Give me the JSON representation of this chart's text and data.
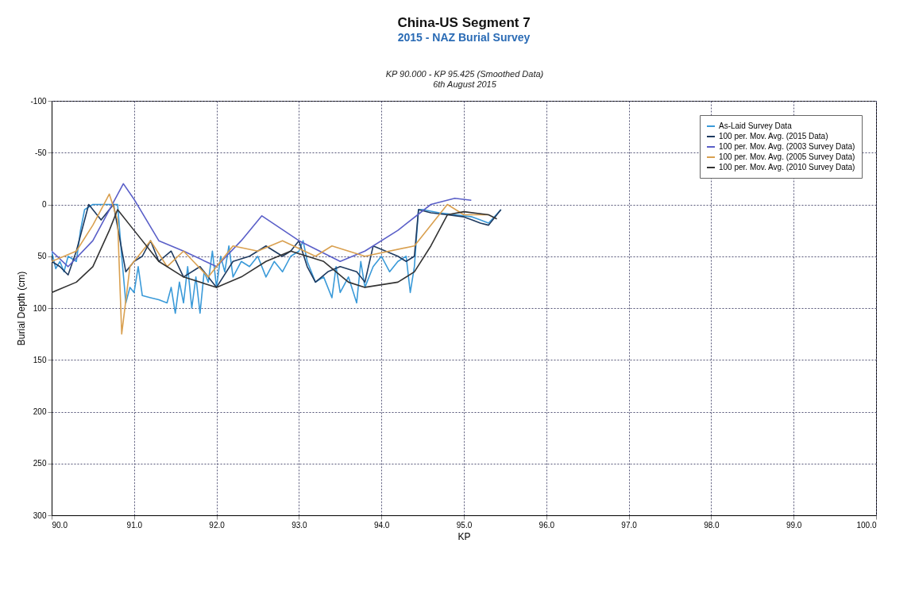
{
  "chart_data": {
    "type": "line",
    "title": "China-US Segment 7",
    "subtitle": "2015 - NAZ Burial Survey",
    "annotations": [
      "KP 90.000 - KP 95.425 (Smoothed Data)",
      "6th August 2015"
    ],
    "xlabel": "KP",
    "ylabel": "Burial Depth (cm)",
    "xlim": [
      90,
      100
    ],
    "xticks": [
      {
        "value": 90,
        "label": "90.0"
      },
      {
        "value": 91,
        "label": "91.0"
      },
      {
        "value": 92,
        "label": "92.0"
      },
      {
        "value": 93,
        "label": "93.0"
      },
      {
        "value": 94,
        "label": "94.0"
      },
      {
        "value": 95,
        "label": "95.0"
      },
      {
        "value": 96,
        "label": "96.0"
      },
      {
        "value": 97,
        "label": "97.0"
      },
      {
        "value": 98,
        "label": "98.0"
      },
      {
        "value": 99,
        "label": "99.0"
      },
      {
        "value": 100,
        "label": "100.0"
      }
    ],
    "ylim": [
      300,
      -100
    ],
    "yticks": [
      -100,
      -50,
      0,
      50,
      100,
      150,
      200,
      250,
      300
    ],
    "grid": true,
    "legend": "top right",
    "series": [
      {
        "name": "As-Laid Survey Data",
        "color": "#3a9ad9",
        "x": [
          90.0,
          90.05,
          90.1,
          90.15,
          90.2,
          90.3,
          90.35,
          90.4,
          90.5,
          90.6,
          90.7,
          90.8,
          90.85,
          90.9,
          90.95,
          91.0,
          91.05,
          91.1,
          91.2,
          91.3,
          91.4,
          91.45,
          91.5,
          91.55,
          91.6,
          91.65,
          91.7,
          91.75,
          91.8,
          91.85,
          91.9,
          91.95,
          92.0,
          92.05,
          92.1,
          92.15,
          92.2,
          92.3,
          92.4,
          92.5,
          92.6,
          92.7,
          92.8,
          92.9,
          93.0,
          93.05,
          93.1,
          93.2,
          93.3,
          93.4,
          93.45,
          93.5,
          93.6,
          93.7,
          93.75,
          93.8,
          93.9,
          94.0,
          94.1,
          94.2,
          94.3,
          94.35,
          94.4,
          94.45,
          94.5,
          94.7,
          94.9,
          95.1,
          95.2,
          95.3,
          95.45
        ],
        "values": [
          45,
          62,
          55,
          65,
          50,
          55,
          25,
          5,
          0,
          0,
          0,
          0,
          50,
          95,
          80,
          85,
          60,
          88,
          90,
          92,
          95,
          80,
          105,
          75,
          95,
          60,
          100,
          70,
          105,
          65,
          75,
          45,
          80,
          50,
          65,
          40,
          70,
          55,
          60,
          50,
          70,
          55,
          65,
          50,
          45,
          35,
          55,
          75,
          70,
          90,
          60,
          85,
          70,
          95,
          55,
          80,
          60,
          50,
          65,
          55,
          50,
          85,
          60,
          5,
          5,
          8,
          10,
          12,
          15,
          18,
          5
        ]
      },
      {
        "name": "100 per. Mov. Avg. (2015 Data)",
        "color": "#1f3a5f",
        "x": [
          90.0,
          90.1,
          90.2,
          90.3,
          90.45,
          90.6,
          90.75,
          90.9,
          91.0,
          91.1,
          91.2,
          91.3,
          91.45,
          91.6,
          91.8,
          92.0,
          92.2,
          92.4,
          92.6,
          92.8,
          92.9,
          93.0,
          93.1,
          93.2,
          93.35,
          93.5,
          93.7,
          93.8,
          93.9,
          94.05,
          94.2,
          94.3,
          94.4,
          94.45,
          94.6,
          94.8,
          95.0,
          95.1,
          95.2,
          95.3,
          95.45
        ],
        "values": [
          55,
          60,
          68,
          45,
          0,
          15,
          0,
          65,
          55,
          50,
          35,
          55,
          45,
          70,
          60,
          80,
          55,
          50,
          40,
          50,
          45,
          35,
          60,
          75,
          65,
          60,
          65,
          75,
          40,
          45,
          50,
          55,
          50,
          5,
          8,
          10,
          12,
          15,
          18,
          20,
          5
        ]
      },
      {
        "name": "100 per. Mov. Avg. (2003 Survey Data)",
        "color": "#5a5fc8",
        "x": [
          90.0,
          90.2,
          90.5,
          90.87,
          91.0,
          91.3,
          91.6,
          92.0,
          92.3,
          92.55,
          93.0,
          93.5,
          93.8,
          94.2,
          94.6,
          94.89,
          95.09
        ],
        "values": [
          45,
          60,
          35,
          -20,
          -5,
          35,
          45,
          60,
          35,
          11,
          35,
          55,
          45,
          25,
          0,
          -6,
          -4
        ]
      },
      {
        "name": "100 per. Mov. Avg. (2005 Survey Data)",
        "color": "#d9a050",
        "x": [
          90.0,
          90.3,
          90.5,
          90.7,
          90.8,
          90.85,
          90.95,
          91.2,
          91.4,
          91.6,
          91.9,
          92.2,
          92.5,
          92.8,
          93.2,
          93.4,
          93.8,
          94.4,
          94.8,
          95.0,
          95.3
        ],
        "values": [
          55,
          45,
          20,
          -10,
          15,
          125,
          60,
          35,
          60,
          45,
          70,
          40,
          45,
          35,
          50,
          40,
          50,
          40,
          0,
          10,
          10
        ]
      },
      {
        "name": "100 per. Mov. Avg. (2010 Survey Data)",
        "color": "#333333",
        "x": [
          90.0,
          90.3,
          90.5,
          90.7,
          90.8,
          91.0,
          91.3,
          91.6,
          92.0,
          92.3,
          92.6,
          92.9,
          93.3,
          93.6,
          93.8,
          94.2,
          94.4,
          94.6,
          94.8,
          95.0,
          95.3,
          95.4
        ],
        "values": [
          85,
          75,
          60,
          25,
          5,
          25,
          55,
          70,
          80,
          70,
          55,
          45,
          55,
          75,
          80,
          75,
          65,
          40,
          10,
          7,
          10,
          14
        ]
      }
    ]
  }
}
